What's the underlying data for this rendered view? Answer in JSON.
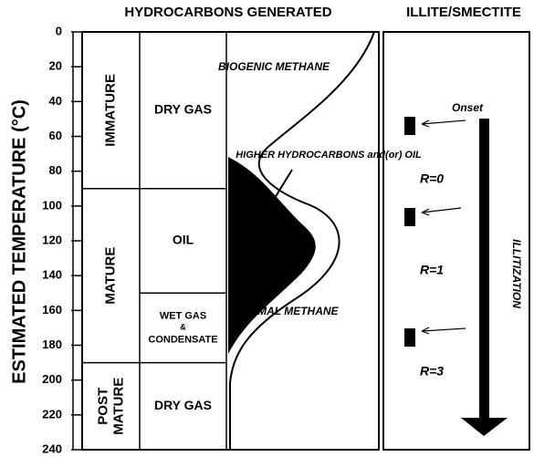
{
  "headers": {
    "left": "HYDROCARBONS GENERATED",
    "right": "ILLITE/SMECTITE"
  },
  "axis": {
    "label": "ESTIMATED TEMPERATURE (°C)",
    "ylim": [
      0,
      240
    ],
    "yticks": [
      0,
      20,
      40,
      60,
      80,
      100,
      120,
      140,
      160,
      180,
      200,
      220,
      240
    ]
  },
  "maturity": [
    {
      "label": "IMMATURE",
      "from": 0,
      "to": 90
    },
    {
      "label": "MATURE",
      "from": 90,
      "to": 190
    },
    {
      "label": "POST MATURE",
      "from": 190,
      "to": 240
    }
  ],
  "hydrocarbons": [
    {
      "label": "DRY GAS",
      "from": 0,
      "to": 90
    },
    {
      "label": "OIL",
      "from": 90,
      "to": 150
    },
    {
      "label": "WET GAS & CONDENSATE",
      "from": 150,
      "to": 190
    },
    {
      "label": "DRY GAS",
      "from": 190,
      "to": 240
    }
  ],
  "curve_labels": {
    "biogenic": "BIOGENIC METHANE",
    "higher": "HIGHER HYDROCARBONS and(or) OIL",
    "thermal": "THERMAL METHANE"
  },
  "illite": {
    "onset": "Onset",
    "zones": [
      "R=0",
      "R=1",
      "R=3"
    ],
    "process": "ILLITIZATION"
  }
}
